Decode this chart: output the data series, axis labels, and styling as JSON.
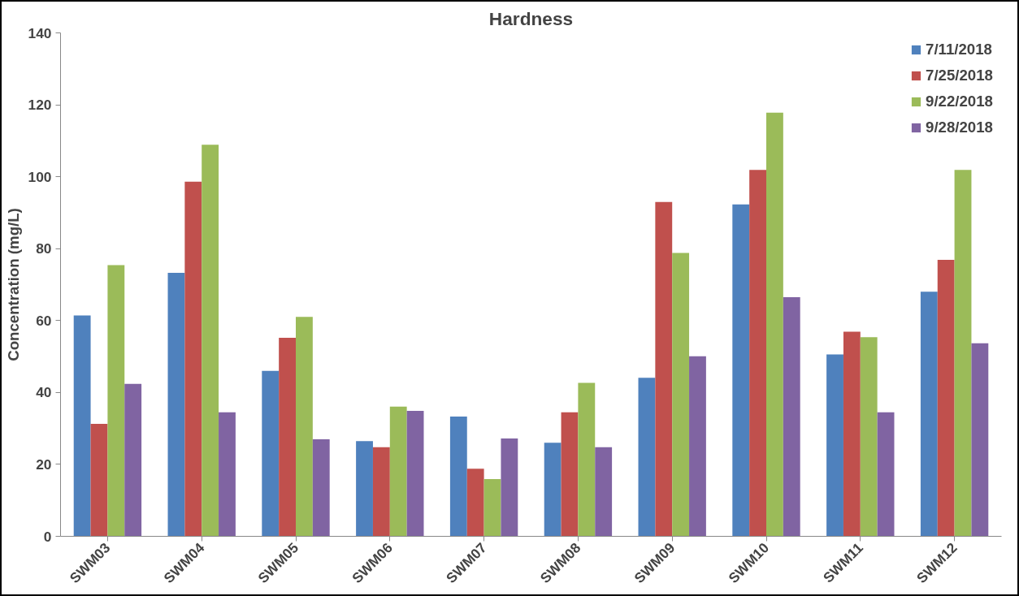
{
  "chart_data": {
    "type": "bar",
    "title": "Hardness",
    "ylabel": "Concentration (mg/L)",
    "categories": [
      "SWM03",
      "SWM04",
      "SWM05",
      "SWM06",
      "SWM07",
      "SWM08",
      "SWM09",
      "SWM10",
      "SWM11",
      "SWM12"
    ],
    "series": [
      {
        "name": "7/11/2018",
        "color": "#4f81bd",
        "values": [
          61.4,
          73.3,
          46,
          26.5,
          33.3,
          26,
          44.1,
          92.3,
          50.6,
          68
        ]
      },
      {
        "name": "7/25/2018",
        "color": "#c0504d",
        "values": [
          31.3,
          98.6,
          55.2,
          24.8,
          18.8,
          34.5,
          93,
          101.9,
          56.9,
          76.9
        ]
      },
      {
        "name": "9/22/2018",
        "color": "#9bbb59",
        "values": [
          75.4,
          108.9,
          61,
          36.1,
          15.9,
          42.7,
          78.8,
          117.8,
          55.4,
          101.9
        ]
      },
      {
        "name": "9/28/2018",
        "color": "#8064a2",
        "values": [
          42.4,
          34.5,
          27,
          34.9,
          27.2,
          24.8,
          50.1,
          66.5,
          34.5,
          53.7
        ]
      }
    ],
    "ylim": [
      0,
      140
    ],
    "yticks": [
      0,
      20,
      40,
      60,
      80,
      100,
      120,
      140
    ],
    "grid": false,
    "legend": "top right"
  }
}
